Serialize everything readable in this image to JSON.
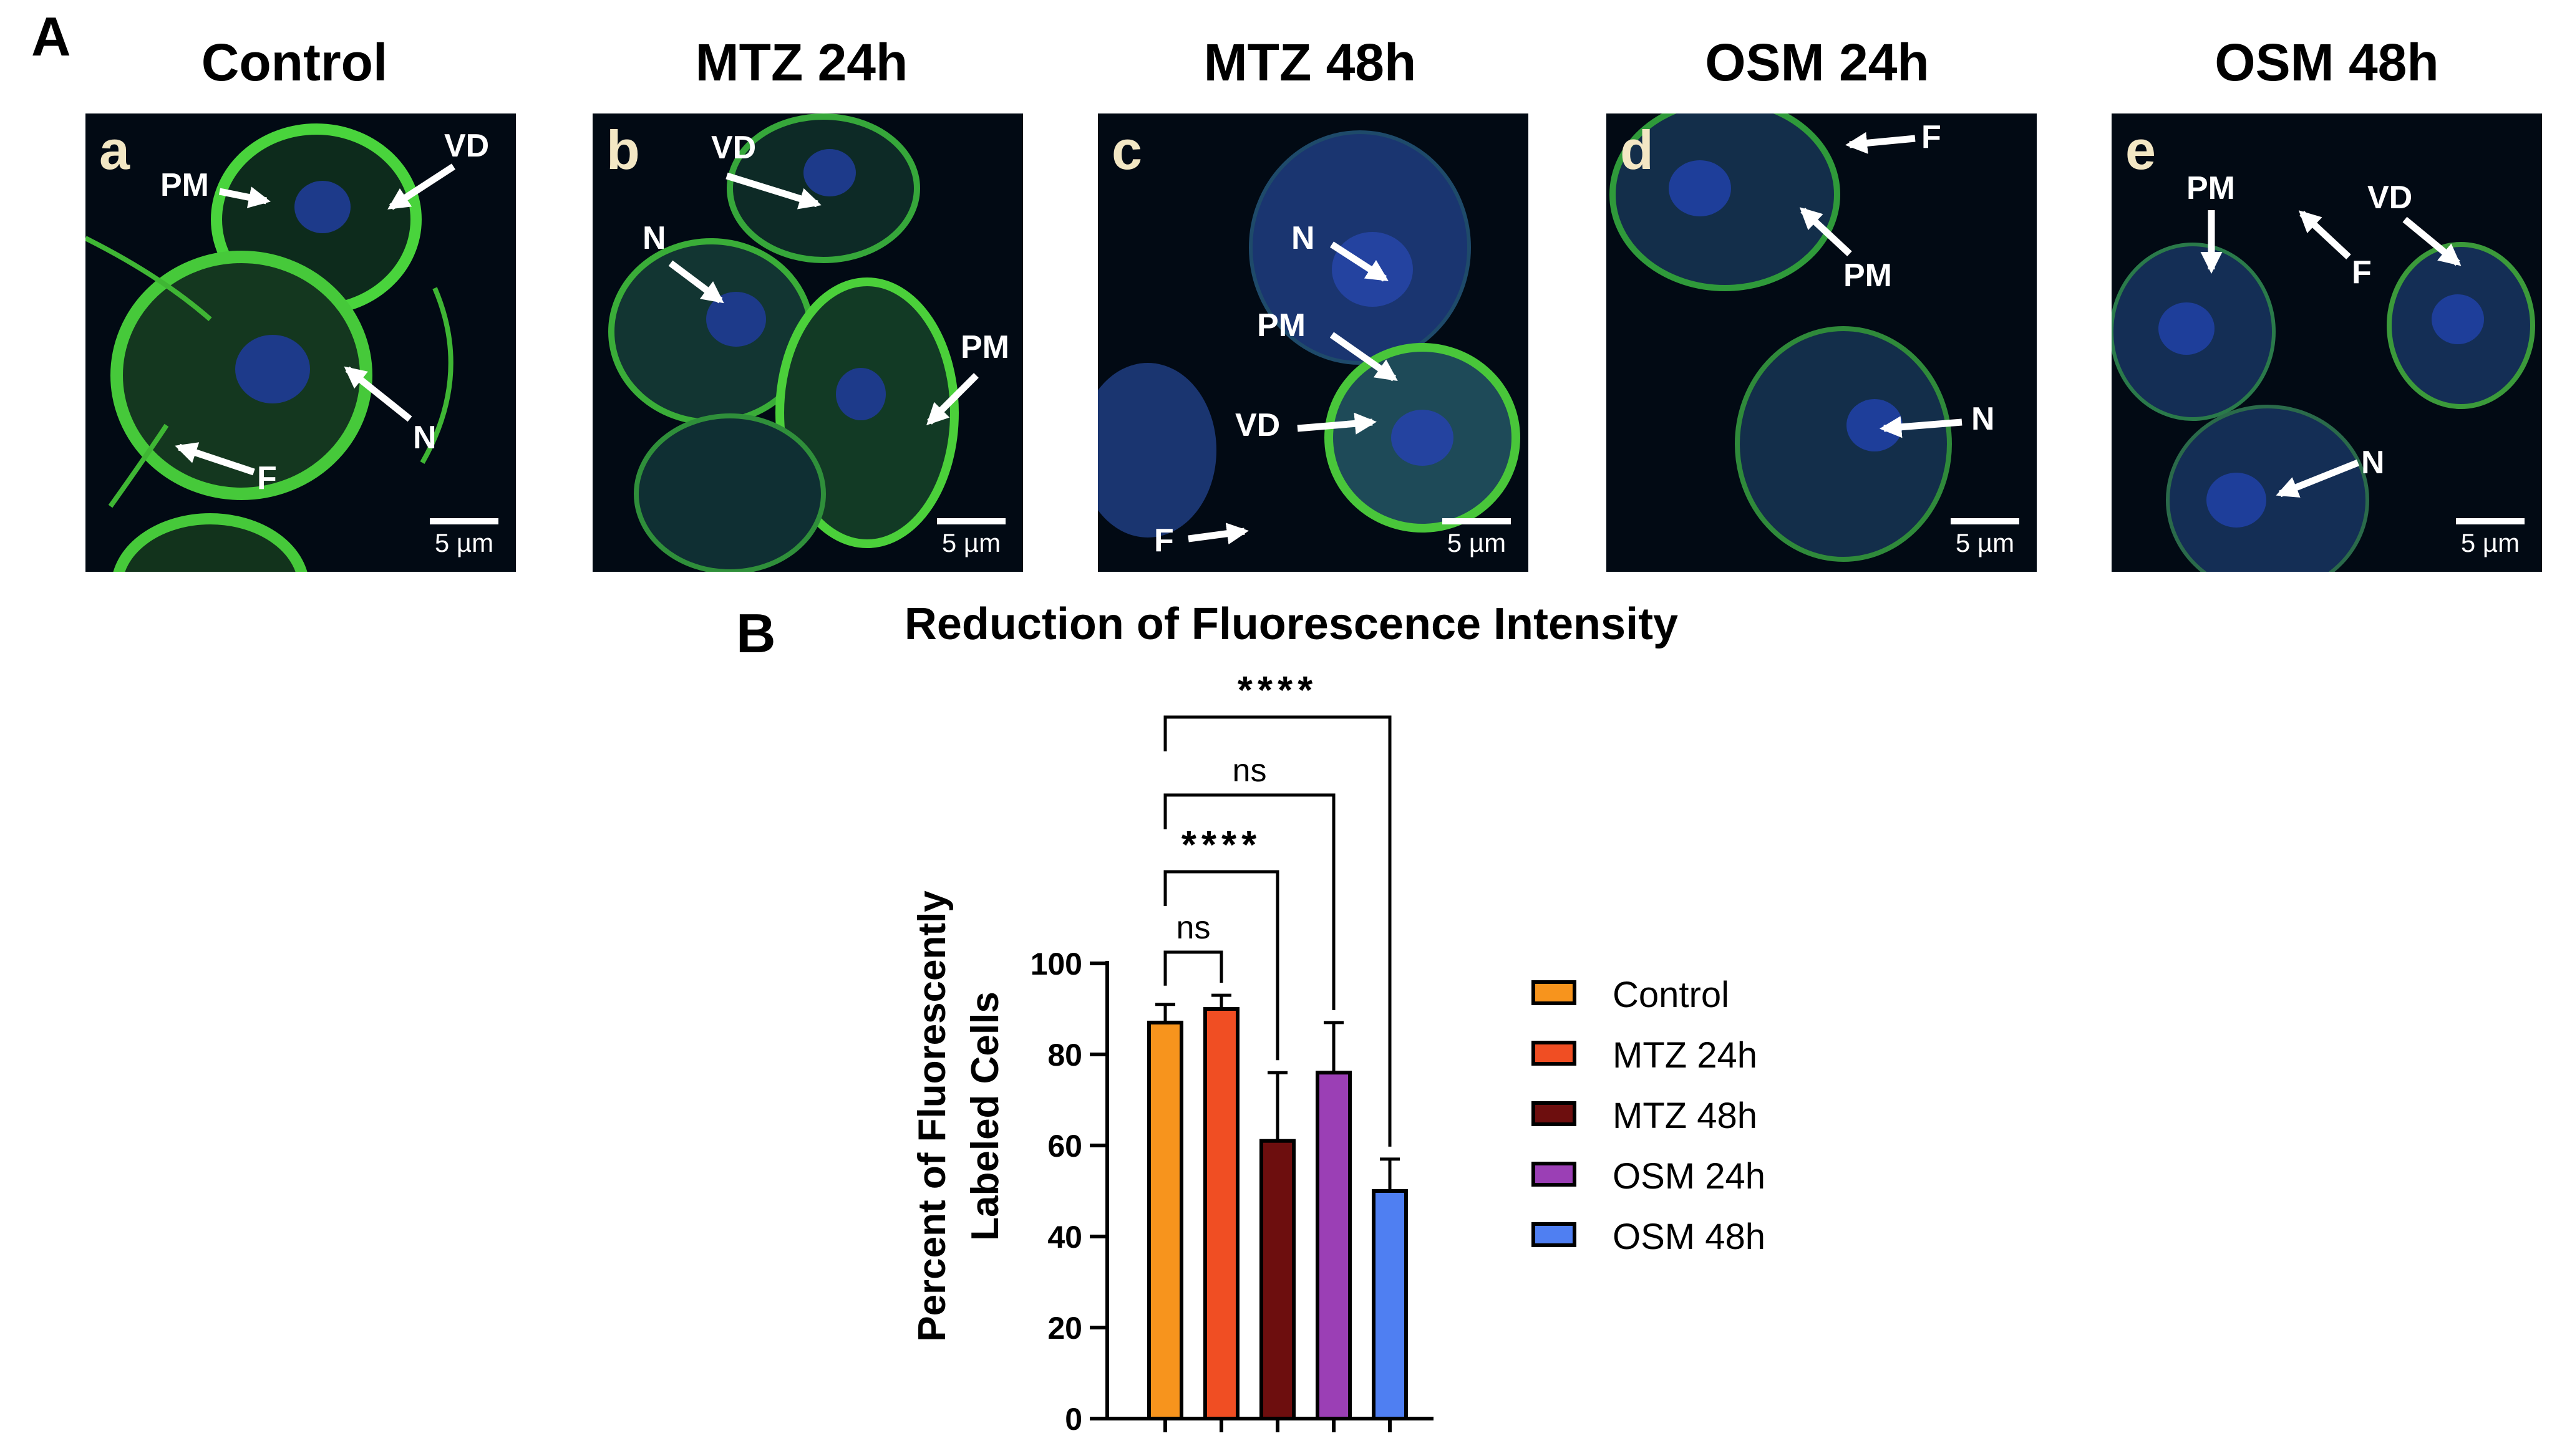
{
  "panel_A_label": "A",
  "panel_B_label": "B",
  "columns": [
    {
      "title": "Control",
      "sub": "a",
      "scale": "5 µm",
      "labels": {
        "pm": "PM",
        "vd": "VD",
        "n": "N",
        "f": "F"
      }
    },
    {
      "title": "MTZ 24h",
      "sub": "b",
      "scale": "5 µm",
      "labels": {
        "vd": "VD",
        "n": "N",
        "pm": "PM"
      }
    },
    {
      "title": "MTZ 48h",
      "sub": "c",
      "scale": "5 µm",
      "labels": {
        "n": "N",
        "pm": "PM",
        "vd": "VD",
        "f": "F"
      }
    },
    {
      "title": "OSM 24h",
      "sub": "d",
      "scale": "5 µm",
      "labels": {
        "f": "F",
        "pm": "PM",
        "n": "N"
      }
    },
    {
      "title": "OSM 48h",
      "sub": "e",
      "scale": "5 µm",
      "labels": {
        "pm": "PM",
        "vd": "VD",
        "f": "F",
        "n": "N"
      }
    }
  ],
  "chart_data": {
    "type": "bar",
    "title": "Reduction of Fluorescence Intensity",
    "ylabel_lines": [
      "Percent of Fluorescently",
      "Labeled Cells"
    ],
    "categories": [
      "Control",
      "MTZ 24h",
      "MTZ 48h",
      "OSM 24h",
      "OSM 48h"
    ],
    "values": [
      87,
      90,
      61,
      76,
      50
    ],
    "errors": [
      4,
      3,
      15,
      11,
      7
    ],
    "colors": [
      "#f7941d",
      "#f04e23",
      "#6d0e0e",
      "#9b3fb5",
      "#4f7ff2"
    ],
    "ylim": [
      0,
      100
    ],
    "yticks": [
      "0",
      "20",
      "40",
      "60",
      "80",
      "100"
    ],
    "legend_position": "right",
    "comparisons": [
      {
        "from": "Control",
        "to": "MTZ 24h",
        "label": "ns"
      },
      {
        "from": "Control",
        "to": "MTZ 48h",
        "label": "****"
      },
      {
        "from": "Control",
        "to": "OSM 24h",
        "label": "ns"
      },
      {
        "from": "Control",
        "to": "OSM 48h",
        "label": "****"
      }
    ]
  }
}
